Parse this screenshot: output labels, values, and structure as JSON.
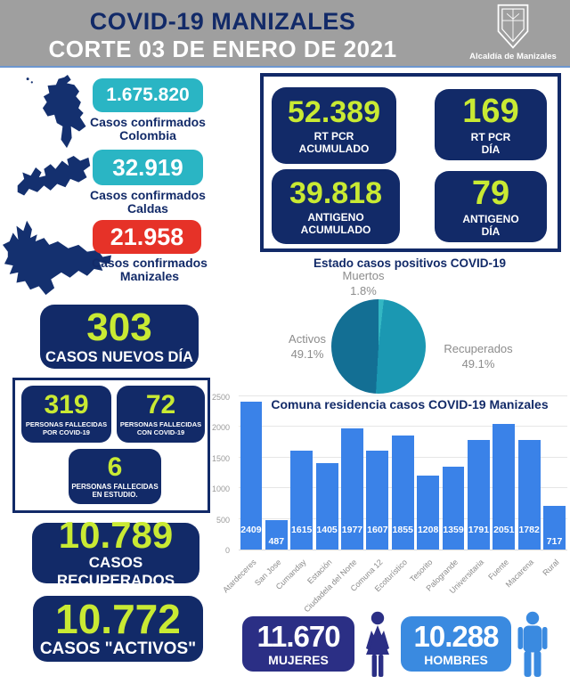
{
  "colors": {
    "navy": "#122a68",
    "teal": "#2ab5c4",
    "red": "#e63228",
    "lime": "#c9ea33",
    "gray": "#9f9f9f",
    "mujeres": "#2b2f85",
    "hombres": "#3a8ae0",
    "labelGray": "#8c8c8c",
    "map": "#14306f"
  },
  "header": {
    "title": "COVID-19 MANIZALES",
    "subtitle": "CORTE 03 DE ENERO DE 2021",
    "logo_caption": "Alcaldía de Manizales"
  },
  "region_stats": [
    {
      "value": "1.675.820",
      "label_line1": "Casos confirmados",
      "label_line2": "Colombia"
    },
    {
      "value": "32.919",
      "label_line1": "Casos confirmados",
      "label_line2": "Caldas"
    },
    {
      "value": "21.958",
      "label_line1": "Casos confirmados",
      "label_line2": "Manizales"
    }
  ],
  "tests": [
    {
      "value": "52.389",
      "line1": "RT PCR",
      "line2": "ACUMULADO"
    },
    {
      "value": "169",
      "line1": "RT PCR",
      "line2": "DÍA"
    },
    {
      "value": "39.818",
      "line1": "ANTIGENO",
      "line2": "ACUMULADO"
    },
    {
      "value": "79",
      "line1": "ANTIGENO",
      "line2": "DÍA"
    }
  ],
  "new_cases": {
    "value": "303",
    "label": "CASOS NUEVOS DÍA"
  },
  "deaths": [
    {
      "value": "319",
      "line1": "PERSONAS FALLECIDAS",
      "line2": "POR COVID-19"
    },
    {
      "value": "72",
      "line1": "PERSONAS FALLECIDAS",
      "line2": "CON COVID-19"
    },
    {
      "value": "6",
      "line1": "PERSONAS FALLECIDAS",
      "line2": "EN ESTUDIO."
    }
  ],
  "recovered": {
    "value": "10.789",
    "label": "CASOS RECUPERADOS"
  },
  "active": {
    "value": "10.772",
    "label": "CASOS \"ACTIVOS\""
  },
  "gender": {
    "mujeres": {
      "value": "11.670",
      "label": "MUJERES"
    },
    "hombres": {
      "value": "10.288",
      "label": "HOMBRES"
    }
  },
  "chart_data": [
    {
      "type": "pie",
      "title": "Estado casos positivos COVID-19",
      "slices": [
        {
          "label": "Muertos",
          "value": 1.8,
          "color": "#33b7c3"
        },
        {
          "label": "Recuperados",
          "value": 49.1,
          "color": "#1b98b2"
        },
        {
          "label": "Activos",
          "value": 49.1,
          "color": "#136f94"
        }
      ],
      "legend_position": "around",
      "start_angle_deg": 0
    },
    {
      "type": "bar",
      "title": "Comuna residencia casos COVID-19 Manizales",
      "categories": [
        "Atardeceres",
        "San Jose",
        "Cumanday",
        "Estación",
        "Ciudadela del Norte",
        "Comuna 12",
        "Ecoturístico",
        "Tesorito",
        "Palogrande",
        "Universitaria",
        "Fuente",
        "Macarena",
        "Rural"
      ],
      "values": [
        2409,
        487,
        1615,
        1405,
        1977,
        1607,
        1855,
        1208,
        1359,
        1791,
        2051,
        1782,
        717
      ],
      "title_position": "top",
      "xlabel": "",
      "ylabel": "",
      "ylim": [
        0,
        2500
      ],
      "yticks": [
        0,
        500,
        1000,
        1500,
        2000,
        2500
      ],
      "grid": true,
      "bar_color": "#3a82e8",
      "value_label_color": "#ffffff"
    }
  ]
}
